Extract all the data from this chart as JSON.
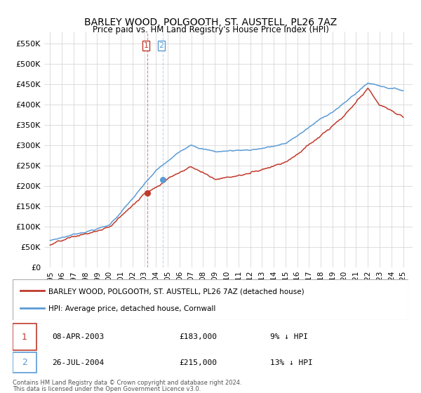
{
  "title": "BARLEY WOOD, POLGOOTH, ST. AUSTELL, PL26 7AZ",
  "subtitle": "Price paid vs. HM Land Registry's House Price Index (HPI)",
  "legend_entry1": "BARLEY WOOD, POLGOOTH, ST. AUSTELL, PL26 7AZ (detached house)",
  "legend_entry2": "HPI: Average price, detached house, Cornwall",
  "transaction1_label": "1",
  "transaction1_date": "08-APR-2003",
  "transaction1_price": "£183,000",
  "transaction1_pct": "9% ↓ HPI",
  "transaction1_x": 2003.27,
  "transaction1_y": 183000,
  "transaction2_label": "2",
  "transaction2_date": "26-JUL-2004",
  "transaction2_price": "£215,000",
  "transaction2_pct": "13% ↓ HPI",
  "transaction2_x": 2004.57,
  "transaction2_y": 215000,
  "footer": "Contains HM Land Registry data © Crown copyright and database right 2024.\nThis data is licensed under the Open Government Licence v3.0.",
  "red_color": "#c0392b",
  "blue_color": "#5b9bd5",
  "vline1_color": "#c0392b",
  "vline2_color": "#5b9bd5",
  "ylim_min": 0,
  "ylim_max": 580000,
  "yticks": [
    0,
    50000,
    100000,
    150000,
    200000,
    250000,
    300000,
    350000,
    400000,
    450000,
    500000,
    550000
  ],
  "xlim_min": 1994.5,
  "xlim_max": 2025.8,
  "xtick_start": 1995,
  "xtick_end": 2026
}
